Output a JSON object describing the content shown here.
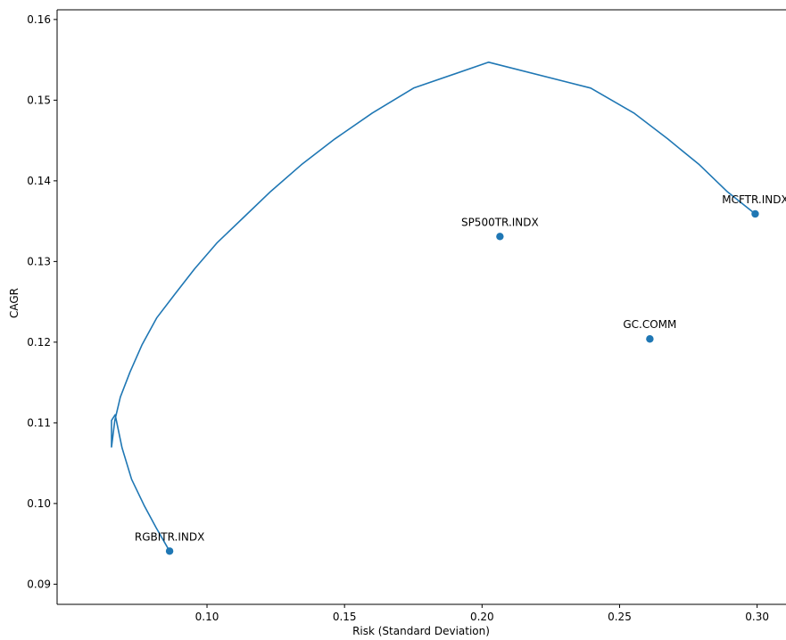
{
  "chart_data": {
    "type": "line",
    "xlabel": "Risk (Standard Deviation)",
    "ylabel": "CAGR",
    "xlim": [
      0.0455,
      0.3105
    ],
    "ylim": [
      0.0875,
      0.1612
    ],
    "x_ticks": [
      0.1,
      0.15,
      0.2,
      0.25,
      0.3
    ],
    "x_tick_labels": [
      "0.10",
      "0.15",
      "0.20",
      "0.25",
      "0.30"
    ],
    "y_ticks": [
      0.09,
      0.1,
      0.11,
      0.12,
      0.13,
      0.14,
      0.15,
      0.16
    ],
    "y_tick_labels": [
      "0.09",
      "0.10",
      "0.11",
      "0.12",
      "0.13",
      "0.14",
      "0.15",
      "0.16"
    ],
    "grid": false,
    "legend": "none",
    "colors": {
      "series": "#1f77b4"
    },
    "series": [
      {
        "type": "line",
        "x": [
          0.0864,
          0.0815,
          0.0771,
          0.0726,
          0.0691,
          0.0666,
          0.0653,
          0.0653,
          0.0665,
          0.0685,
          0.072,
          0.0764,
          0.0817,
          0.0884,
          0.0955,
          0.1036,
          0.1131,
          0.1232,
          0.1343,
          0.1465,
          0.1601,
          0.1751,
          0.2024,
          0.2395,
          0.2552,
          0.2675,
          0.279,
          0.289,
          0.2993
        ],
        "y": [
          0.0941,
          0.097,
          0.0998,
          0.103,
          0.1069,
          0.111,
          0.1103,
          0.107,
          0.1103,
          0.1132,
          0.1163,
          0.1197,
          0.123,
          0.126,
          0.1291,
          0.1323,
          0.1354,
          0.1387,
          0.142,
          0.1452,
          0.1484,
          0.1515,
          0.1547,
          0.1515,
          0.1484,
          0.1452,
          0.142,
          0.1387,
          0.1359
        ]
      },
      {
        "type": "scatter",
        "points": [
          {
            "label": "RGBITR.INDX",
            "x": 0.0864,
            "y": 0.0941
          },
          {
            "label": "SP500TR.INDX",
            "x": 0.2065,
            "y": 0.1331
          },
          {
            "label": "GC.COMM",
            "x": 0.261,
            "y": 0.1204
          },
          {
            "label": "MCFTR.INDX",
            "x": 0.2993,
            "y": 0.1359
          }
        ]
      }
    ]
  }
}
